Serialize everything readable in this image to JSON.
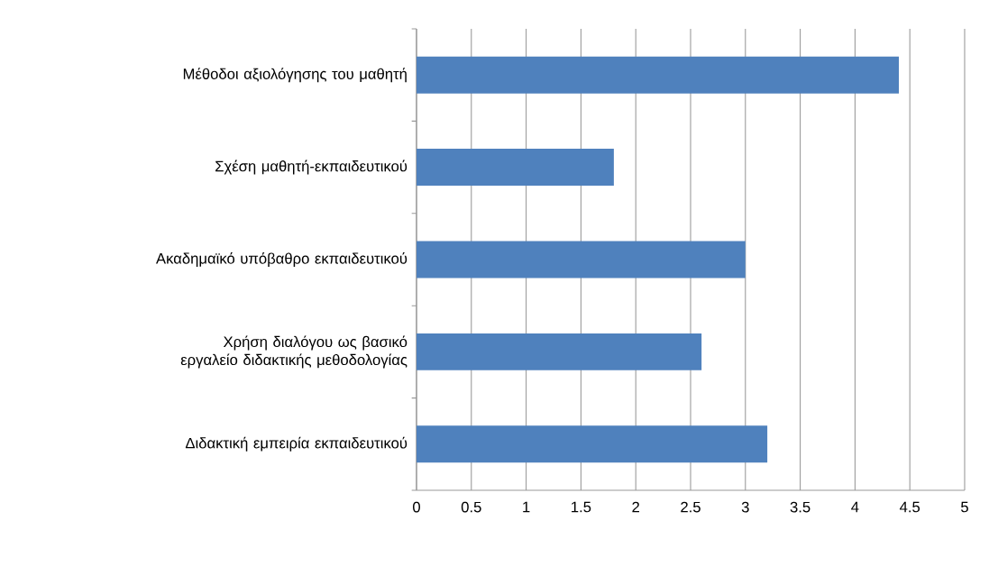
{
  "chart_data": {
    "type": "bar",
    "orientation": "horizontal",
    "categories": [
      "Μέθοδοι αξιολόγησης του μαθητή",
      "Σχέση μαθητή-εκπαιδευτικού",
      "Ακαδημαϊκό υπόβαθρο εκπαιδευτικού",
      "Χρήση διαλόγου ως βασικό εργαλείο διδακτικής μεθοδολογίας",
      "Διδακτική εμπειρία εκπαιδευτικού"
    ],
    "values": [
      4.4,
      1.8,
      3.0,
      2.6,
      3.2
    ],
    "color": "#4f81bd",
    "xlim": [
      0,
      5
    ],
    "xticks": [
      0,
      0.5,
      1,
      1.5,
      2,
      2.5,
      3,
      3.5,
      4,
      4.5,
      5
    ],
    "grid": "x"
  }
}
